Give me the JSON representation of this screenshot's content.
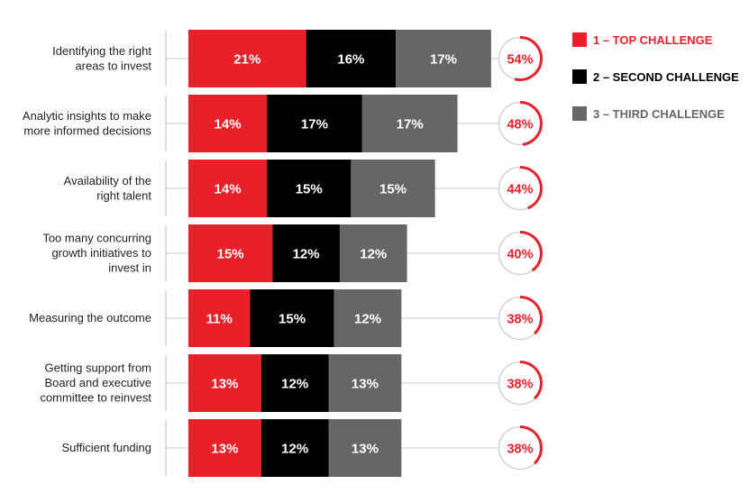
{
  "chart_data": {
    "type": "bar",
    "orientation": "horizontal",
    "stacked": true,
    "categories": [
      [
        "Identifying the right",
        "areas to invest"
      ],
      [
        "Analytic insights to make",
        "more informed decisions"
      ],
      [
        "Availability of the",
        "right talent"
      ],
      [
        "Too many concurring",
        "growth initiatives to",
        "invest in"
      ],
      [
        "Measuring the outcome"
      ],
      [
        "Getting support from",
        "Board and executive",
        "committee to reinvest"
      ],
      [
        "Sufficient funding"
      ]
    ],
    "series": [
      {
        "name": "1 – TOP CHALLENGE",
        "color": "#e8202a",
        "values": [
          21,
          14,
          14,
          15,
          11,
          13,
          13
        ]
      },
      {
        "name": "2 – SECOND CHALLENGE",
        "color": "#000000",
        "values": [
          16,
          17,
          15,
          12,
          15,
          12,
          12
        ]
      },
      {
        "name": "3 – THIRD CHALLENGE",
        "color": "#666666",
        "values": [
          17,
          17,
          15,
          12,
          12,
          13,
          13
        ]
      }
    ],
    "totals": [
      54,
      48,
      44,
      40,
      38,
      38,
      38
    ],
    "value_suffix": "%",
    "total_ring_range": [
      0,
      100
    ],
    "legend_position": "top-right",
    "grid": false
  }
}
